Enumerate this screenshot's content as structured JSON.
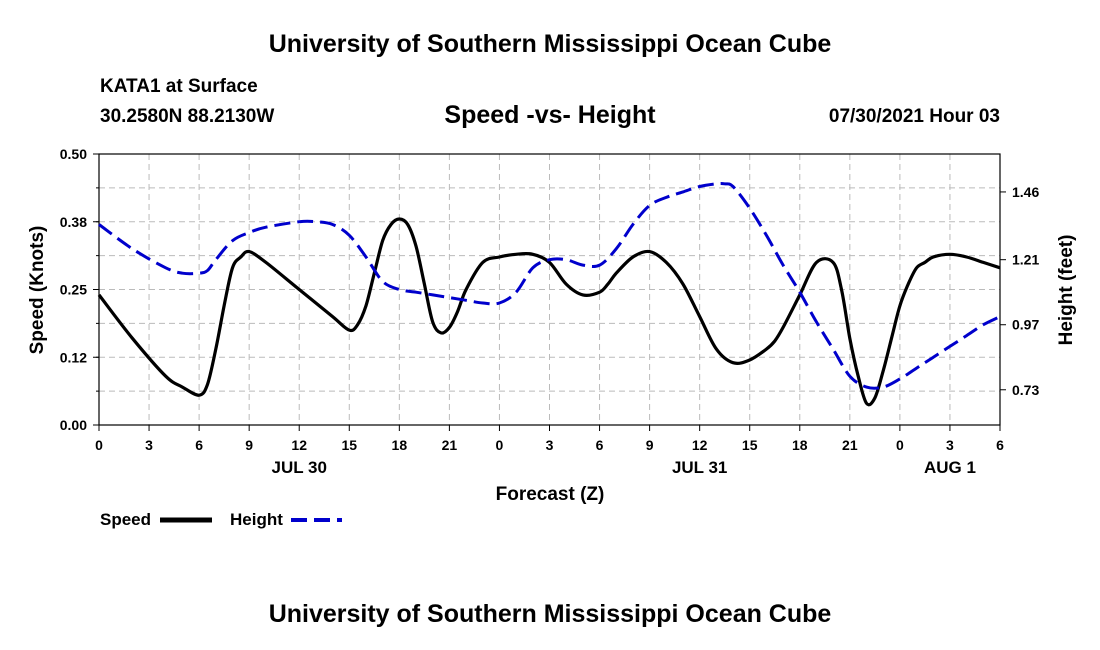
{
  "header": {
    "title": "University of Southern Mississippi Ocean Cube",
    "station": "KATA1 at Surface",
    "coords": "30.2580N  88.2130W",
    "chart_title": "Speed -vs- Height",
    "datetime": "07/30/2021 Hour 03"
  },
  "footer": {
    "title": "University of Southern Mississippi Ocean Cube"
  },
  "colors": {
    "speed": "#000000",
    "height": "#0000cc",
    "grid": "#bbbbbb"
  },
  "chart_data": {
    "type": "line",
    "title": "Speed -vs- Height",
    "xlabel": "Forecast (Z)",
    "ylabel": "Speed (Knots)",
    "y2label": "Height (feet)",
    "grid": true,
    "xlim": [
      0,
      54
    ],
    "ylim": [
      0,
      0.5
    ],
    "y2lim": [
      0.6,
      1.6
    ],
    "yticks": [
      "0.00",
      "0.12",
      "0.25",
      "0.38",
      "0.50"
    ],
    "y2ticks": [
      "0.73",
      "0.97",
      "1.21",
      "1.46"
    ],
    "xtick_labels": [
      "0",
      "3",
      "6",
      "9",
      "12",
      "15",
      "18",
      "21",
      "0",
      "3",
      "6",
      "9",
      "12",
      "15",
      "18",
      "21",
      "0",
      "3",
      "6"
    ],
    "date_labels": [
      {
        "label": "JUL 30",
        "x": 12
      },
      {
        "label": "JUL 31",
        "x": 36
      },
      {
        "label": "AUG 1",
        "x": 51
      }
    ],
    "legend": [
      {
        "name": "Speed",
        "style": "solid"
      },
      {
        "name": "Height",
        "style": "dashed"
      }
    ],
    "series": [
      {
        "name": "Speed",
        "axis": "left",
        "x": [
          0,
          2,
          4,
          5,
          6,
          6.5,
          7,
          7.5,
          8,
          8.5,
          9,
          10,
          12,
          14,
          15,
          15.5,
          16,
          16.5,
          17,
          17.5,
          18,
          18.5,
          19,
          19.5,
          20,
          20.5,
          21,
          21.5,
          22,
          23,
          24,
          25,
          26,
          27,
          28,
          29,
          30,
          30.5,
          31,
          32,
          33,
          34,
          35,
          36,
          37,
          38,
          39,
          40,
          40.5,
          41,
          42,
          43,
          44,
          44.5,
          45,
          45.5,
          46,
          46.5,
          47,
          47.5,
          48,
          48.5,
          49,
          49.5,
          50,
          51,
          52,
          53,
          54
        ],
        "values": [
          0.24,
          0.16,
          0.09,
          0.07,
          0.055,
          0.075,
          0.14,
          0.22,
          0.29,
          0.31,
          0.32,
          0.3,
          0.25,
          0.2,
          0.175,
          0.185,
          0.22,
          0.28,
          0.34,
          0.37,
          0.38,
          0.37,
          0.33,
          0.26,
          0.19,
          0.17,
          0.18,
          0.21,
          0.25,
          0.3,
          0.31,
          0.315,
          0.315,
          0.3,
          0.26,
          0.24,
          0.245,
          0.26,
          0.28,
          0.31,
          0.32,
          0.3,
          0.26,
          0.2,
          0.14,
          0.115,
          0.12,
          0.14,
          0.155,
          0.18,
          0.24,
          0.3,
          0.3,
          0.25,
          0.16,
          0.09,
          0.04,
          0.05,
          0.1,
          0.16,
          0.22,
          0.26,
          0.29,
          0.3,
          0.31,
          0.315,
          0.31,
          0.3,
          0.29
        ]
      },
      {
        "name": "Height",
        "axis": "right",
        "x": [
          0,
          2,
          4,
          5,
          6,
          6.5,
          7,
          8,
          9,
          10,
          12,
          13,
          14,
          15,
          16,
          17,
          18,
          19,
          20,
          21,
          22,
          23,
          24,
          25,
          26,
          27,
          28,
          29,
          30,
          31,
          32,
          33,
          34,
          35,
          36,
          37,
          37.5,
          38,
          39,
          40,
          41,
          42,
          43,
          44,
          45,
          46,
          47,
          48,
          49,
          50,
          51,
          52,
          53,
          54
        ],
        "values": [
          1.34,
          1.25,
          1.18,
          1.16,
          1.16,
          1.17,
          1.21,
          1.28,
          1.31,
          1.33,
          1.35,
          1.35,
          1.34,
          1.3,
          1.22,
          1.13,
          1.1,
          1.09,
          1.08,
          1.07,
          1.06,
          1.05,
          1.05,
          1.09,
          1.18,
          1.21,
          1.21,
          1.19,
          1.19,
          1.25,
          1.34,
          1.41,
          1.44,
          1.46,
          1.48,
          1.49,
          1.49,
          1.48,
          1.4,
          1.3,
          1.19,
          1.09,
          0.98,
          0.88,
          0.78,
          0.74,
          0.74,
          0.77,
          0.81,
          0.85,
          0.89,
          0.93,
          0.97,
          1.0
        ]
      }
    ]
  }
}
